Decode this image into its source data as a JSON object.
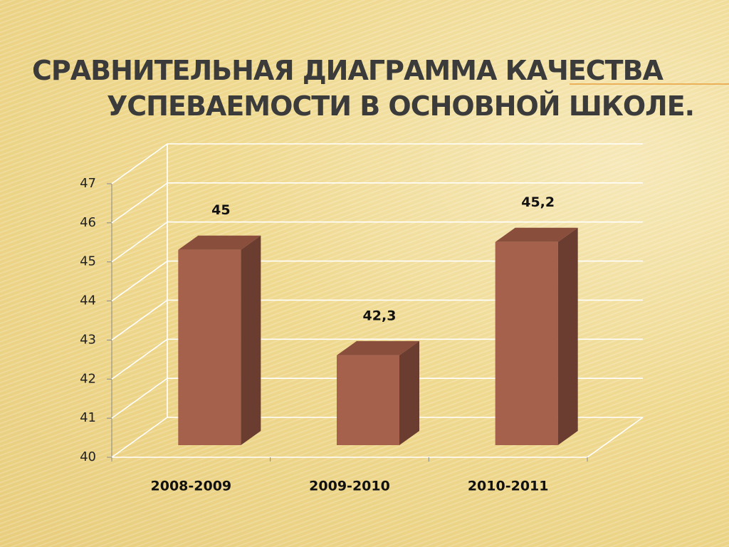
{
  "chart_data": {
    "type": "bar3d",
    "title": [
      "СРАВНИТЕЛЬНАЯ ДИАГРАММА КАЧЕСТВА",
      "УСПЕВАЕМОСТИ В ОСНОВНОЙ ШКОЛЕ."
    ],
    "categories": [
      "2008-2009",
      "2009-2010",
      "2010-2011"
    ],
    "values": [
      45,
      42.3,
      45.2
    ],
    "value_labels": [
      "45",
      "42,3",
      "45,2"
    ],
    "color": "#a5614b",
    "ylim": [
      40,
      47
    ],
    "yticks": [
      40,
      41,
      42,
      43,
      44,
      45,
      46,
      47
    ],
    "grid": true
  }
}
